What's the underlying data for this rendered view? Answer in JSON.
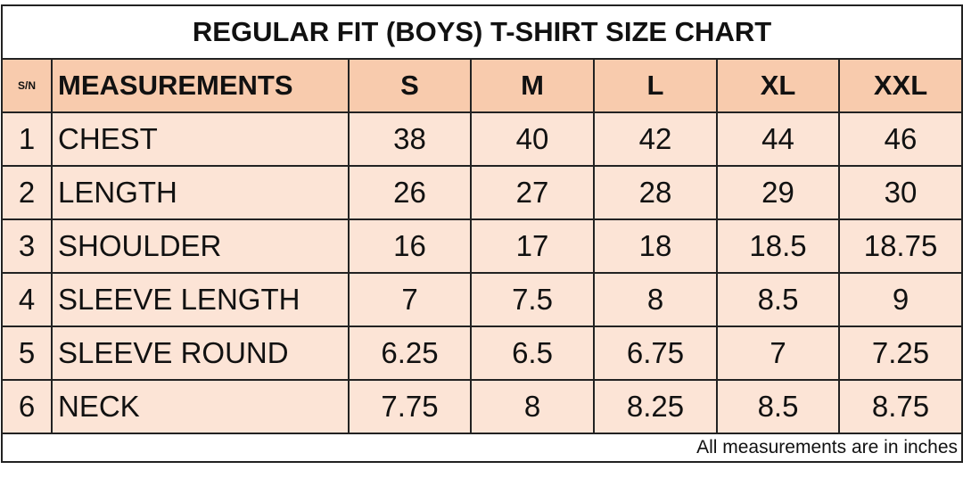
{
  "title": "REGULAR FIT (BOYS) T-SHIRT SIZE CHART",
  "table": {
    "header": [
      "S/N",
      "MEASUREMENTS",
      "S",
      "M",
      "L",
      "XL",
      "XXL"
    ],
    "rows": [
      [
        "1",
        "CHEST",
        "38",
        "40",
        "42",
        "44",
        "46"
      ],
      [
        "2",
        "LENGTH",
        "26",
        "27",
        "28",
        "29",
        "30"
      ],
      [
        "3",
        "SHOULDER",
        "16",
        "17",
        "18",
        "18.5",
        "18.75"
      ],
      [
        "4",
        "SLEEVE LENGTH",
        "7",
        "7.5",
        "8",
        "8.5",
        "9"
      ],
      [
        "5",
        "SLEEVE ROUND",
        "6.25",
        "6.5",
        "6.75",
        "7",
        "7.25"
      ],
      [
        "6",
        "NECK",
        "7.75",
        "8",
        "8.25",
        "8.5",
        "8.75"
      ]
    ]
  },
  "footnote": "All measurements are in inches"
}
